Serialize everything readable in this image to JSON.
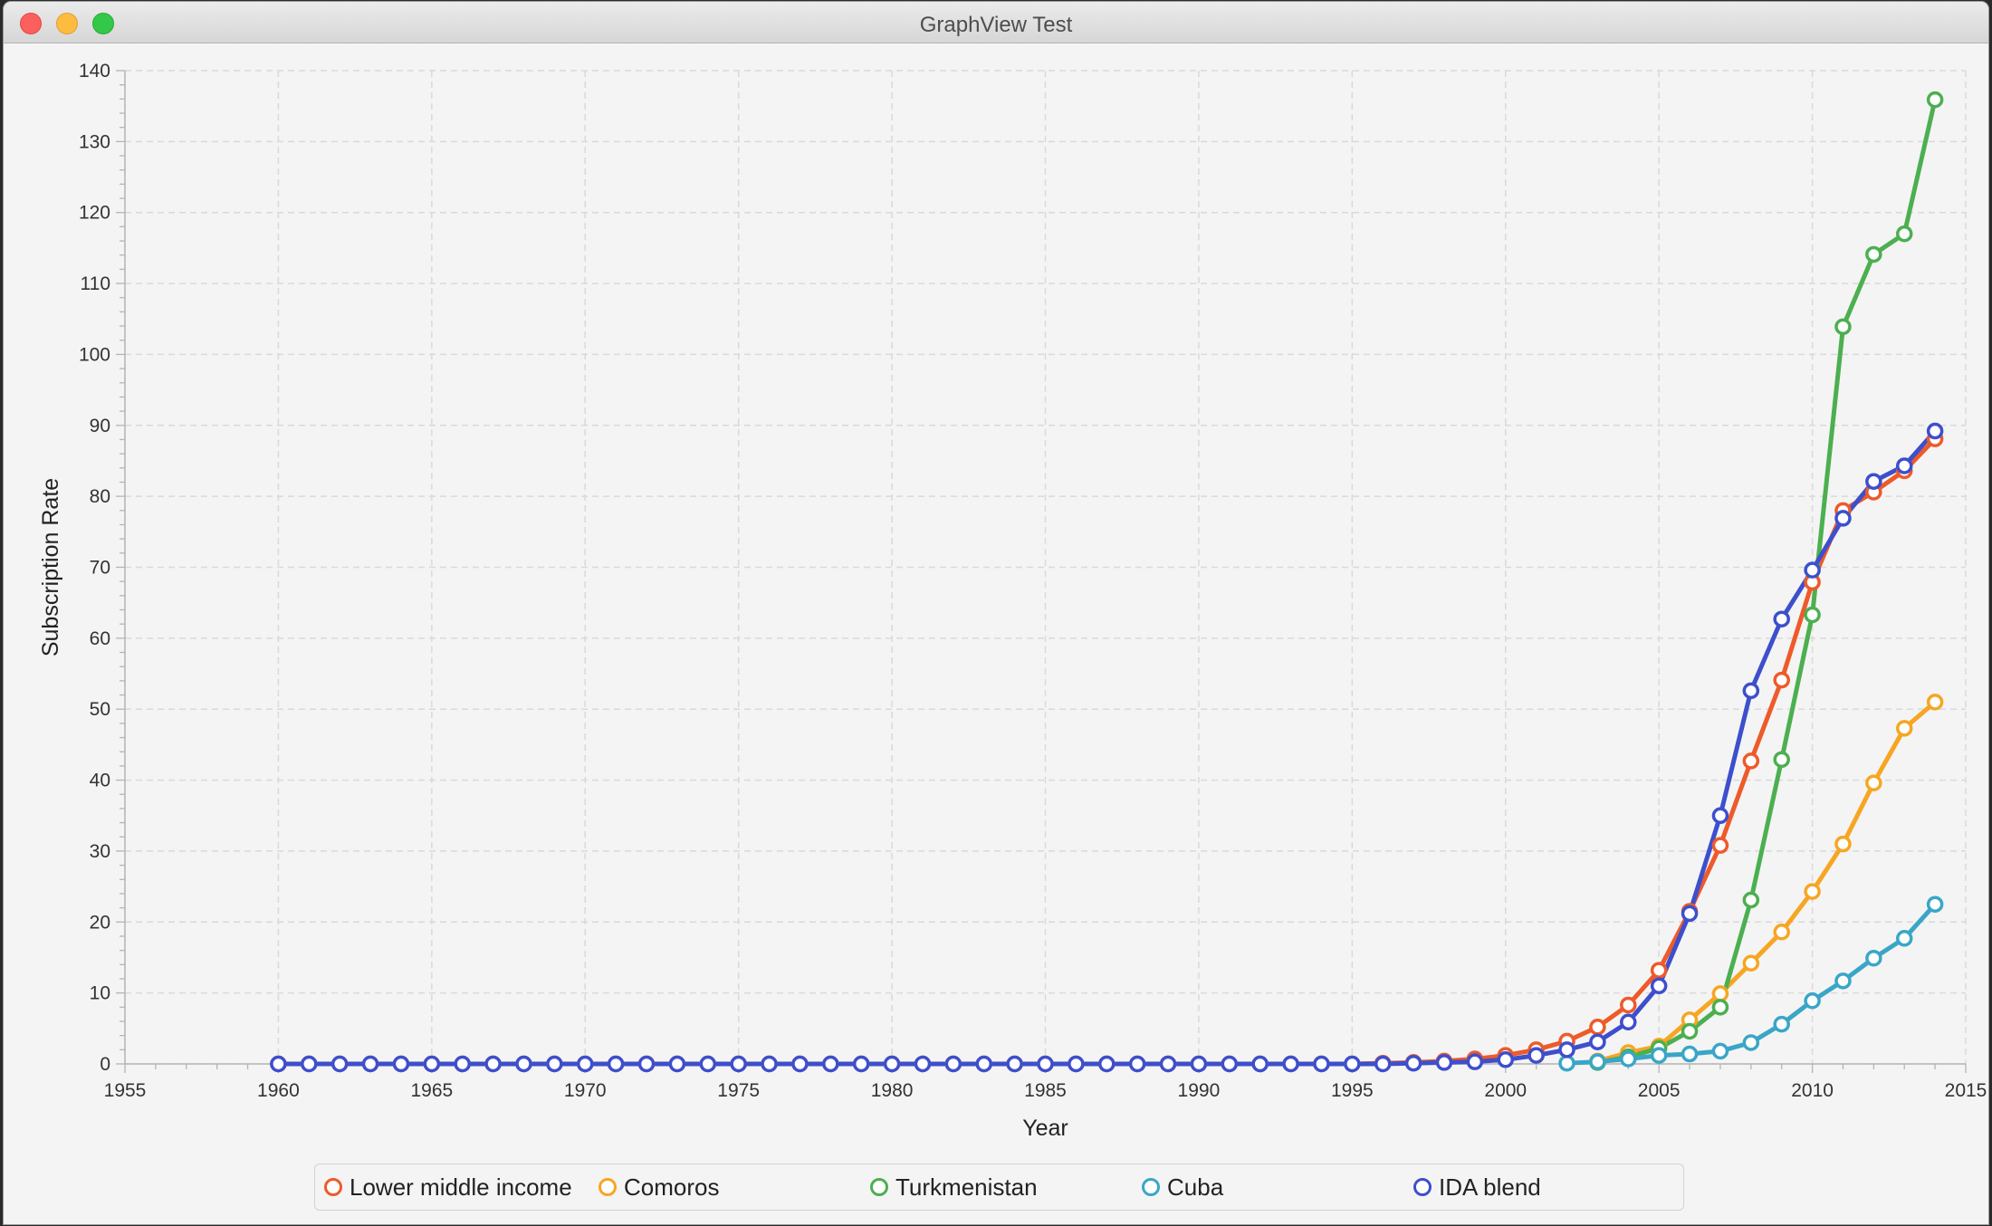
{
  "window": {
    "title": "GraphView Test"
  },
  "colors": {
    "Lower middle income": "#ee5a2a",
    "Comoros": "#f6a623",
    "Turkmenistan": "#4caf50",
    "Cuba": "#3aa6c7",
    "IDA blend": "#3d4fcc"
  },
  "chart_data": {
    "type": "line",
    "xlabel": "Year",
    "ylabel": "Subscription Rate",
    "xlim": [
      1955,
      2015
    ],
    "ylim": [
      0,
      140
    ],
    "xticks": [
      1955,
      1960,
      1965,
      1970,
      1975,
      1980,
      1985,
      1990,
      1995,
      2000,
      2005,
      2010,
      2015
    ],
    "yticks": [
      0,
      10,
      20,
      30,
      40,
      50,
      60,
      70,
      80,
      90,
      100,
      110,
      120,
      130,
      140
    ],
    "grid": true,
    "legend_position": "bottom",
    "series": [
      {
        "name": "Lower middle income",
        "x": [
          1960,
          1961,
          1962,
          1963,
          1964,
          1965,
          1966,
          1967,
          1968,
          1969,
          1970,
          1971,
          1972,
          1973,
          1974,
          1975,
          1976,
          1977,
          1978,
          1979,
          1980,
          1981,
          1982,
          1983,
          1984,
          1985,
          1986,
          1987,
          1988,
          1989,
          1990,
          1991,
          1992,
          1993,
          1994,
          1995,
          1996,
          1997,
          1998,
          1999,
          2000,
          2001,
          2002,
          2003,
          2004,
          2005,
          2006,
          2007,
          2008,
          2009,
          2010,
          2011,
          2012,
          2013,
          2014
        ],
        "y": [
          0,
          0,
          0,
          0,
          0,
          0,
          0,
          0,
          0,
          0,
          0,
          0,
          0,
          0,
          0,
          0,
          0,
          0,
          0,
          0,
          0,
          0,
          0,
          0,
          0,
          0,
          0,
          0,
          0,
          0,
          0,
          0,
          0,
          0,
          0,
          0,
          0.1,
          0.2,
          0.4,
          0.7,
          1.2,
          2.0,
          3.2,
          5.2,
          8.3,
          13.2,
          21.5,
          30.8,
          42.7,
          54.1,
          67.9,
          78.0,
          80.6,
          83.6,
          88.1
        ]
      },
      {
        "name": "Comoros",
        "x": [
          2003,
          2004,
          2005,
          2006,
          2007,
          2008,
          2009,
          2010,
          2011,
          2012,
          2013,
          2014
        ],
        "y": [
          0.4,
          1.6,
          2.5,
          6.2,
          9.9,
          14.2,
          18.6,
          24.3,
          31.0,
          39.6,
          47.3,
          51.0
        ]
      },
      {
        "name": "Turkmenistan",
        "x": [
          2003,
          2004,
          2005,
          2006,
          2007,
          2008,
          2009,
          2010,
          2011,
          2012,
          2013,
          2014
        ],
        "y": [
          0.2,
          1.0,
          2.2,
          4.6,
          8.0,
          23.1,
          42.9,
          63.3,
          103.9,
          114.1,
          117.0,
          135.9
        ]
      },
      {
        "name": "Cuba",
        "x": [
          2002,
          2003,
          2004,
          2005,
          2006,
          2007,
          2008,
          2009,
          2010,
          2011,
          2012,
          2013,
          2014
        ],
        "y": [
          0.1,
          0.3,
          0.7,
          1.2,
          1.4,
          1.8,
          3.0,
          5.6,
          8.9,
          11.7,
          14.9,
          17.7,
          22.5
        ]
      },
      {
        "name": "IDA blend",
        "x": [
          1960,
          1961,
          1962,
          1963,
          1964,
          1965,
          1966,
          1967,
          1968,
          1969,
          1970,
          1971,
          1972,
          1973,
          1974,
          1975,
          1976,
          1977,
          1978,
          1979,
          1980,
          1981,
          1982,
          1983,
          1984,
          1985,
          1986,
          1987,
          1988,
          1989,
          1990,
          1991,
          1992,
          1993,
          1994,
          1995,
          1996,
          1997,
          1998,
          1999,
          2000,
          2001,
          2002,
          2003,
          2004,
          2005,
          2006,
          2007,
          2008,
          2009,
          2010,
          2011,
          2012,
          2013,
          2014
        ],
        "y": [
          0,
          0,
          0,
          0,
          0,
          0,
          0,
          0,
          0,
          0,
          0,
          0,
          0,
          0,
          0,
          0,
          0,
          0,
          0,
          0,
          0,
          0,
          0,
          0,
          0,
          0,
          0,
          0,
          0,
          0,
          0,
          0,
          0,
          0,
          0,
          0,
          0,
          0.1,
          0.2,
          0.3,
          0.6,
          1.2,
          2.0,
          3.1,
          5.9,
          11.0,
          21.2,
          35.0,
          52.6,
          62.7,
          69.6,
          76.9,
          82.1,
          84.3,
          89.2
        ]
      }
    ]
  }
}
